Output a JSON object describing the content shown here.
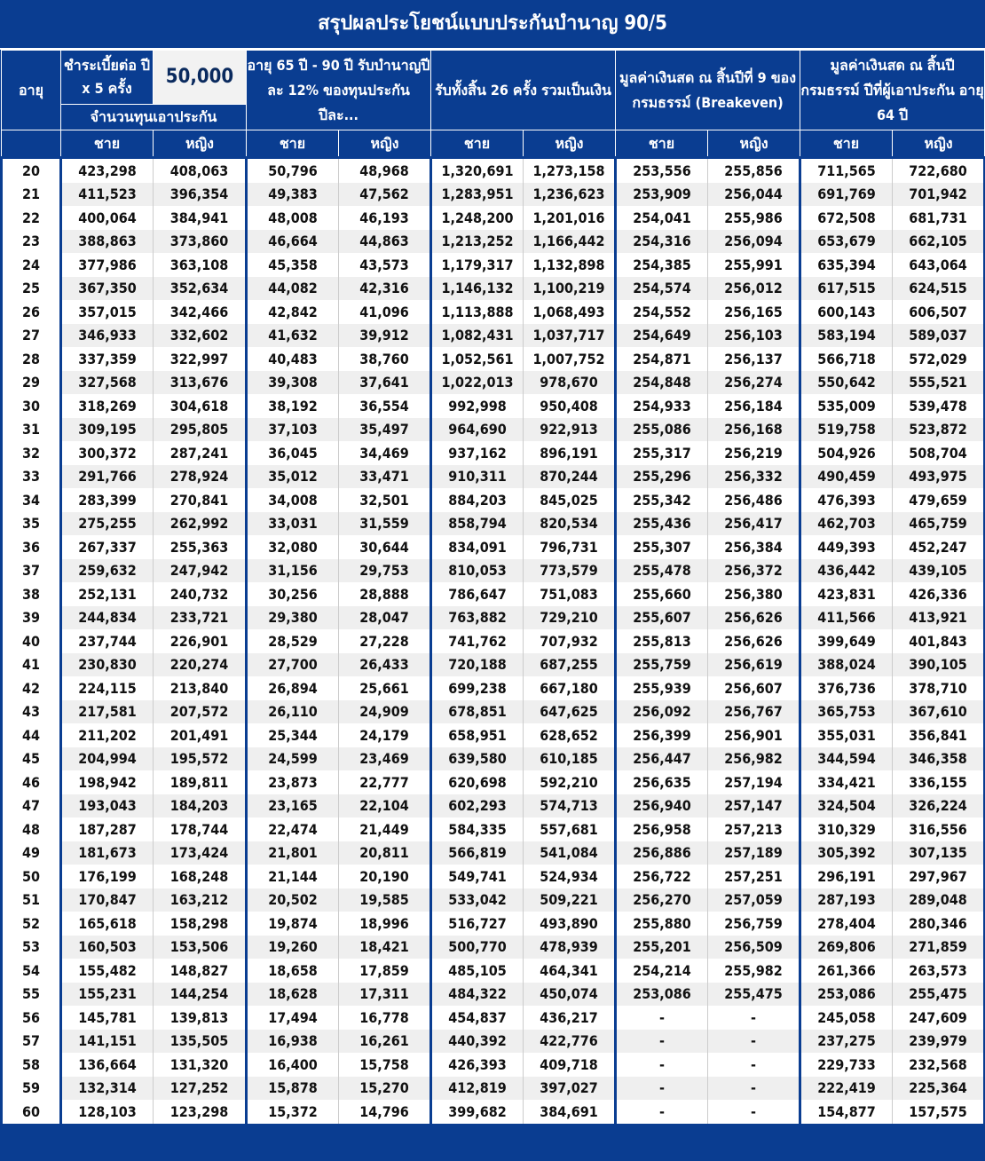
{
  "title": "สรุปผลประโยชน์แบบประกันบำนาญ 90/5",
  "header": {
    "age": "อายุ",
    "premium_label": "ชำระเบี้ยต่อ ปี x 5 ครั้ง",
    "premium_value": "50,000",
    "sum_insured": "จำนวนทุนเอาประกัน",
    "annuity": "อายุ 65 ปี - 90 ปี รับบำนาญปีละ 12% ของทุนประกัน ปีละ...",
    "total": "รับทั้งสิ้น 26 ครั้ง รวมเป็นเงิน",
    "cash9": "มูลค่าเงินสด ณ สิ้นปีที่ 9 ของกรมธรรม์ (Breakeven)",
    "cash64": "มูลค่าเงินสด ณ สิ้นปี กรมธรรม์  ปีที่ผู้เอาประกัน อายุ 64 ปี",
    "male": "ชาย",
    "female": "หญิง"
  },
  "rows": [
    [
      "20",
      "423,298",
      "408,063",
      "50,796",
      "48,968",
      "1,320,691",
      "1,273,158",
      "253,556",
      "255,856",
      "711,565",
      "722,680"
    ],
    [
      "21",
      "411,523",
      "396,354",
      "49,383",
      "47,562",
      "1,283,951",
      "1,236,623",
      "253,909",
      "256,044",
      "691,769",
      "701,942"
    ],
    [
      "22",
      "400,064",
      "384,941",
      "48,008",
      "46,193",
      "1,248,200",
      "1,201,016",
      "254,041",
      "255,986",
      "672,508",
      "681,731"
    ],
    [
      "23",
      "388,863",
      "373,860",
      "46,664",
      "44,863",
      "1,213,252",
      "1,166,442",
      "254,316",
      "256,094",
      "653,679",
      "662,105"
    ],
    [
      "24",
      "377,986",
      "363,108",
      "45,358",
      "43,573",
      "1,179,317",
      "1,132,898",
      "254,385",
      "255,991",
      "635,394",
      "643,064"
    ],
    [
      "25",
      "367,350",
      "352,634",
      "44,082",
      "42,316",
      "1,146,132",
      "1,100,219",
      "254,574",
      "256,012",
      "617,515",
      "624,515"
    ],
    [
      "26",
      "357,015",
      "342,466",
      "42,842",
      "41,096",
      "1,113,888",
      "1,068,493",
      "254,552",
      "256,165",
      "600,143",
      "606,507"
    ],
    [
      "27",
      "346,933",
      "332,602",
      "41,632",
      "39,912",
      "1,082,431",
      "1,037,717",
      "254,649",
      "256,103",
      "583,194",
      "589,037"
    ],
    [
      "28",
      "337,359",
      "322,997",
      "40,483",
      "38,760",
      "1,052,561",
      "1,007,752",
      "254,871",
      "256,137",
      "566,718",
      "572,029"
    ],
    [
      "29",
      "327,568",
      "313,676",
      "39,308",
      "37,641",
      "1,022,013",
      "978,670",
      "254,848",
      "256,274",
      "550,642",
      "555,521"
    ],
    [
      "30",
      "318,269",
      "304,618",
      "38,192",
      "36,554",
      "992,998",
      "950,408",
      "254,933",
      "256,184",
      "535,009",
      "539,478"
    ],
    [
      "31",
      "309,195",
      "295,805",
      "37,103",
      "35,497",
      "964,690",
      "922,913",
      "255,086",
      "256,168",
      "519,758",
      "523,872"
    ],
    [
      "32",
      "300,372",
      "287,241",
      "36,045",
      "34,469",
      "937,162",
      "896,191",
      "255,317",
      "256,219",
      "504,926",
      "508,704"
    ],
    [
      "33",
      "291,766",
      "278,924",
      "35,012",
      "33,471",
      "910,311",
      "870,244",
      "255,296",
      "256,332",
      "490,459",
      "493,975"
    ],
    [
      "34",
      "283,399",
      "270,841",
      "34,008",
      "32,501",
      "884,203",
      "845,025",
      "255,342",
      "256,486",
      "476,393",
      "479,659"
    ],
    [
      "35",
      "275,255",
      "262,992",
      "33,031",
      "31,559",
      "858,794",
      "820,534",
      "255,436",
      "256,417",
      "462,703",
      "465,759"
    ],
    [
      "36",
      "267,337",
      "255,363",
      "32,080",
      "30,644",
      "834,091",
      "796,731",
      "255,307",
      "256,384",
      "449,393",
      "452,247"
    ],
    [
      "37",
      "259,632",
      "247,942",
      "31,156",
      "29,753",
      "810,053",
      "773,579",
      "255,478",
      "256,372",
      "436,442",
      "439,105"
    ],
    [
      "38",
      "252,131",
      "240,732",
      "30,256",
      "28,888",
      "786,647",
      "751,083",
      "255,660",
      "256,380",
      "423,831",
      "426,336"
    ],
    [
      "39",
      "244,834",
      "233,721",
      "29,380",
      "28,047",
      "763,882",
      "729,210",
      "255,607",
      "256,626",
      "411,566",
      "413,921"
    ],
    [
      "40",
      "237,744",
      "226,901",
      "28,529",
      "27,228",
      "741,762",
      "707,932",
      "255,813",
      "256,626",
      "399,649",
      "401,843"
    ],
    [
      "41",
      "230,830",
      "220,274",
      "27,700",
      "26,433",
      "720,188",
      "687,255",
      "255,759",
      "256,619",
      "388,024",
      "390,105"
    ],
    [
      "42",
      "224,115",
      "213,840",
      "26,894",
      "25,661",
      "699,238",
      "667,180",
      "255,939",
      "256,607",
      "376,736",
      "378,710"
    ],
    [
      "43",
      "217,581",
      "207,572",
      "26,110",
      "24,909",
      "678,851",
      "647,625",
      "256,092",
      "256,767",
      "365,753",
      "367,610"
    ],
    [
      "44",
      "211,202",
      "201,491",
      "25,344",
      "24,179",
      "658,951",
      "628,652",
      "256,399",
      "256,901",
      "355,031",
      "356,841"
    ],
    [
      "45",
      "204,994",
      "195,572",
      "24,599",
      "23,469",
      "639,580",
      "610,185",
      "256,447",
      "256,982",
      "344,594",
      "346,358"
    ],
    [
      "46",
      "198,942",
      "189,811",
      "23,873",
      "22,777",
      "620,698",
      "592,210",
      "256,635",
      "257,194",
      "334,421",
      "336,155"
    ],
    [
      "47",
      "193,043",
      "184,203",
      "23,165",
      "22,104",
      "602,293",
      "574,713",
      "256,940",
      "257,147",
      "324,504",
      "326,224"
    ],
    [
      "48",
      "187,287",
      "178,744",
      "22,474",
      "21,449",
      "584,335",
      "557,681",
      "256,958",
      "257,213",
      "310,329",
      "316,556"
    ],
    [
      "49",
      "181,673",
      "173,424",
      "21,801",
      "20,811",
      "566,819",
      "541,084",
      "256,886",
      "257,189",
      "305,392",
      "307,135"
    ],
    [
      "50",
      "176,199",
      "168,248",
      "21,144",
      "20,190",
      "549,741",
      "524,934",
      "256,722",
      "257,251",
      "296,191",
      "297,967"
    ],
    [
      "51",
      "170,847",
      "163,212",
      "20,502",
      "19,585",
      "533,042",
      "509,221",
      "256,270",
      "257,059",
      "287,193",
      "289,048"
    ],
    [
      "52",
      "165,618",
      "158,298",
      "19,874",
      "18,996",
      "516,727",
      "493,890",
      "255,880",
      "256,759",
      "278,404",
      "280,346"
    ],
    [
      "53",
      "160,503",
      "153,506",
      "19,260",
      "18,421",
      "500,770",
      "478,939",
      "255,201",
      "256,509",
      "269,806",
      "271,859"
    ],
    [
      "54",
      "155,482",
      "148,827",
      "18,658",
      "17,859",
      "485,105",
      "464,341",
      "254,214",
      "255,982",
      "261,366",
      "263,573"
    ],
    [
      "55",
      "155,231",
      "144,254",
      "18,628",
      "17,311",
      "484,322",
      "450,074",
      "253,086",
      "255,475",
      "253,086",
      "255,475"
    ],
    [
      "56",
      "145,781",
      "139,813",
      "17,494",
      "16,778",
      "454,837",
      "436,217",
      "-",
      "-",
      "245,058",
      "247,609"
    ],
    [
      "57",
      "141,151",
      "135,505",
      "16,938",
      "16,261",
      "440,392",
      "422,776",
      "-",
      "-",
      "237,275",
      "239,979"
    ],
    [
      "58",
      "136,664",
      "131,320",
      "16,400",
      "15,758",
      "426,393",
      "409,718",
      "-",
      "-",
      "229,733",
      "232,568"
    ],
    [
      "59",
      "132,314",
      "127,252",
      "15,878",
      "15,270",
      "412,819",
      "397,027",
      "-",
      "-",
      "222,419",
      "225,364"
    ],
    [
      "60",
      "128,103",
      "123,298",
      "15,372",
      "14,796",
      "399,682",
      "384,691",
      "-",
      "-",
      "154,877",
      "157,575"
    ]
  ]
}
